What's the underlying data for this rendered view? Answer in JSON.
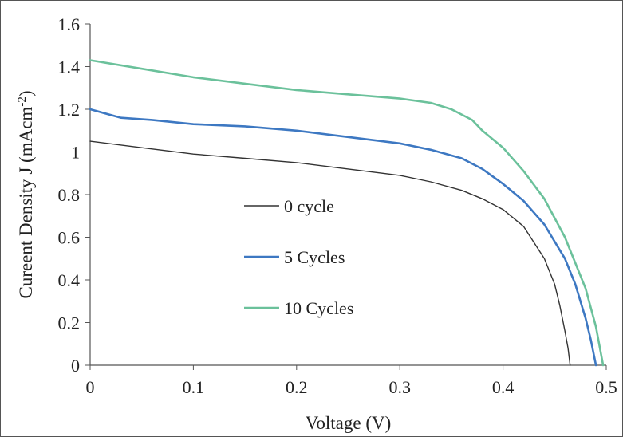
{
  "chart_data": {
    "type": "line",
    "title": "",
    "xlabel": "Voltage (V)",
    "ylabel": "Cureent Density J (mAcm",
    "ylabel_sup": "-2",
    "ylabel_end": ")",
    "xlim": [
      0,
      0.5
    ],
    "ylim": [
      0,
      1.6
    ],
    "xticks": [
      0,
      0.1,
      0.2,
      0.3,
      0.4,
      0.5
    ],
    "xtick_labels": [
      "0",
      "0.1",
      "0.2",
      "0.3",
      "0.4",
      "0.5"
    ],
    "yticks": [
      0,
      0.2,
      0.4,
      0.6,
      0.8,
      1,
      1.2,
      1.4,
      1.6
    ],
    "ytick_labels": [
      "0",
      "0.2",
      "0.4",
      "0.6",
      "0.8",
      "1",
      "1.2",
      "1.4",
      "1.6"
    ],
    "grid": false,
    "legend": "center",
    "series": [
      {
        "name": "0 cycle",
        "color": "#333333",
        "x": [
          0,
          0.05,
          0.1,
          0.15,
          0.2,
          0.25,
          0.3,
          0.33,
          0.36,
          0.38,
          0.4,
          0.42,
          0.44,
          0.45,
          0.455,
          0.46,
          0.463,
          0.465
        ],
        "y": [
          1.05,
          1.02,
          0.99,
          0.97,
          0.95,
          0.92,
          0.89,
          0.86,
          0.82,
          0.78,
          0.73,
          0.65,
          0.5,
          0.38,
          0.28,
          0.16,
          0.08,
          0
        ]
      },
      {
        "name": "5 Cycles",
        "color": "#3d78c2",
        "x": [
          0,
          0.03,
          0.06,
          0.1,
          0.15,
          0.2,
          0.25,
          0.3,
          0.33,
          0.36,
          0.38,
          0.4,
          0.42,
          0.44,
          0.46,
          0.47,
          0.48,
          0.485,
          0.49
        ],
        "y": [
          1.2,
          1.16,
          1.15,
          1.13,
          1.12,
          1.1,
          1.07,
          1.04,
          1.01,
          0.97,
          0.92,
          0.85,
          0.77,
          0.66,
          0.5,
          0.38,
          0.22,
          0.12,
          0
        ]
      },
      {
        "name": "10 Cycles",
        "color": "#6bc19b",
        "x": [
          0,
          0.05,
          0.1,
          0.15,
          0.2,
          0.25,
          0.3,
          0.33,
          0.35,
          0.37,
          0.38,
          0.4,
          0.42,
          0.44,
          0.46,
          0.48,
          0.49,
          0.497
        ],
        "y": [
          1.43,
          1.39,
          1.35,
          1.32,
          1.29,
          1.27,
          1.25,
          1.23,
          1.2,
          1.15,
          1.1,
          1.02,
          0.91,
          0.78,
          0.6,
          0.36,
          0.18,
          0
        ]
      }
    ]
  }
}
